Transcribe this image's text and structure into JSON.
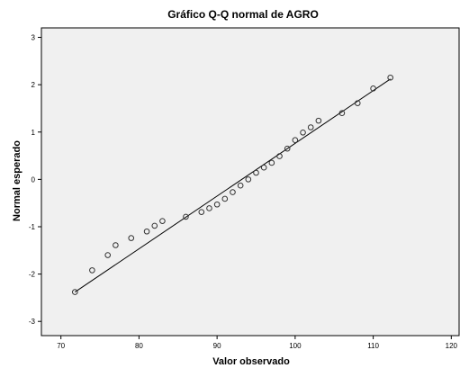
{
  "chart_data": {
    "type": "scatter",
    "title": "Gráfico Q-Q normal de AGRO",
    "xlabel": "Valor observado",
    "ylabel": "Normal esperado",
    "xlim": [
      67.5,
      121
    ],
    "ylim": [
      -3.3,
      3.2
    ],
    "x_ticks": [
      "70",
      "80",
      "90",
      "100",
      "110",
      "120"
    ],
    "y_ticks": [
      "3",
      "2",
      "1",
      "0",
      "-1",
      "-2",
      "-3"
    ],
    "grid": false,
    "plot_background": "#f0f0f0",
    "marker_color": "#333333",
    "reference_line": {
      "x": [
        71.8,
        112.2
      ],
      "y": [
        -2.38,
        2.12
      ]
    },
    "points": {
      "x": [
        71.8,
        74,
        76,
        77,
        79,
        81,
        82,
        83,
        86,
        88,
        89,
        90,
        91,
        92,
        93,
        94,
        95,
        96,
        97,
        98,
        99,
        100,
        101,
        102,
        103,
        106,
        108,
        110,
        112.2
      ],
      "y": [
        -2.38,
        -1.92,
        -1.6,
        -1.39,
        -1.24,
        -1.1,
        -0.98,
        -0.88,
        -0.79,
        -0.69,
        -0.61,
        -0.53,
        -0.41,
        -0.27,
        -0.13,
        0.0,
        0.14,
        0.25,
        0.35,
        0.49,
        0.65,
        0.83,
        0.99,
        1.1,
        1.24,
        1.4,
        1.61,
        1.92,
        2.15
      ]
    }
  }
}
